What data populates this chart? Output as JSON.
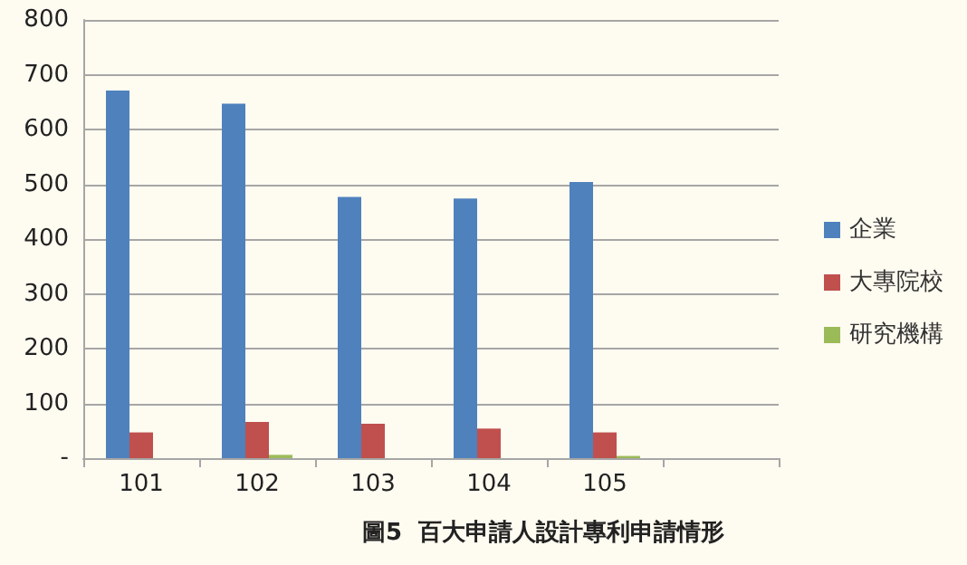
{
  "chart_data": {
    "type": "bar",
    "title": "圖5  百大申請人設計專利申請情形",
    "categories": [
      "101",
      "102",
      "103",
      "104",
      "105",
      null
    ],
    "series": [
      {
        "name": "企業",
        "color": "#4f81bd",
        "values": [
          671,
          647,
          477,
          474,
          504,
          null
        ]
      },
      {
        "name": "大專院校",
        "color": "#c0504d",
        "values": [
          47,
          66,
          63,
          54,
          47,
          null
        ]
      },
      {
        "name": "研究機構",
        "color": "#9bbb59",
        "values": [
          0,
          6,
          0,
          0,
          4,
          null
        ]
      }
    ],
    "ylim": [
      0,
      800
    ],
    "yticks": [
      {
        "value": 0,
        "label": "-"
      },
      100,
      200,
      300,
      400,
      500,
      600,
      700,
      800
    ],
    "grid": "y",
    "legend": "right"
  }
}
